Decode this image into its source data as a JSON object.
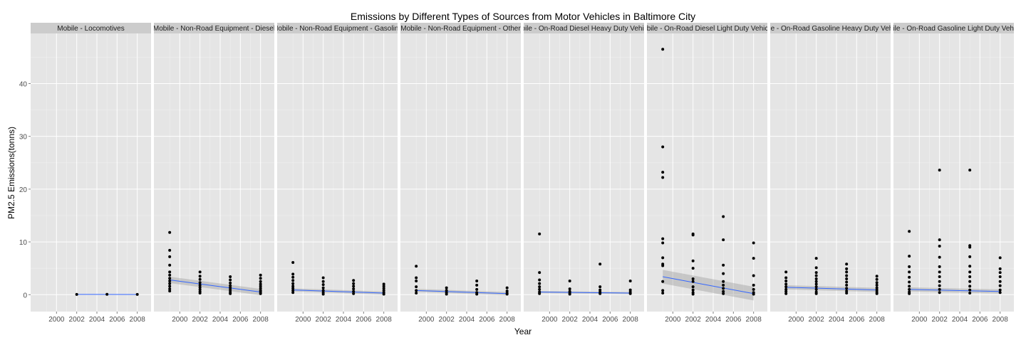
{
  "chart_data": {
    "type": "scatter",
    "title": "Emissions by Different Types of Sources from Motor Vehicles in Baltimore City",
    "xlabel": "Year",
    "ylabel": "PM2.5 Emissions(tonns)",
    "xlim": [
      1999,
      2008
    ],
    "ylim": [
      -3.2,
      49.5
    ],
    "x_ticks": [
      2000,
      2002,
      2004,
      2006,
      2008
    ],
    "y_ticks": [
      0,
      10,
      20,
      30,
      40
    ],
    "grid": true,
    "legend": "none",
    "panels": [
      {
        "name": "Mobile - Locomotives",
        "points": [
          [
            2002,
            0.06
          ],
          [
            2005,
            0.07
          ],
          [
            2008,
            0.05
          ]
        ],
        "trend": {
          "start": [
            2002,
            0.05
          ],
          "end": [
            2008,
            0.04
          ],
          "band": 0.05
        }
      },
      {
        "name": "Mobile - Non-Road Equipment - Diesel",
        "points": [
          [
            1999,
            11.8
          ],
          [
            1999,
            8.4
          ],
          [
            1999,
            7.2
          ],
          [
            1999,
            5.6
          ],
          [
            1999,
            4.3
          ],
          [
            1999,
            3.7
          ],
          [
            1999,
            3.1
          ],
          [
            1999,
            2.6
          ],
          [
            1999,
            2.1
          ],
          [
            1999,
            1.6
          ],
          [
            1999,
            1.1
          ],
          [
            1999,
            0.7
          ],
          [
            2002,
            4.3
          ],
          [
            2002,
            3.5
          ],
          [
            2002,
            2.9
          ],
          [
            2002,
            2.3
          ],
          [
            2002,
            1.8
          ],
          [
            2002,
            1.4
          ],
          [
            2002,
            1.0
          ],
          [
            2002,
            0.6
          ],
          [
            2002,
            0.3
          ],
          [
            2005,
            3.4
          ],
          [
            2005,
            2.8
          ],
          [
            2005,
            2.2
          ],
          [
            2005,
            1.7
          ],
          [
            2005,
            1.3
          ],
          [
            2005,
            0.9
          ],
          [
            2005,
            0.5
          ],
          [
            2005,
            0.2
          ],
          [
            2008,
            3.7
          ],
          [
            2008,
            3.1
          ],
          [
            2008,
            2.5
          ],
          [
            2008,
            2.0
          ],
          [
            2008,
            1.6
          ],
          [
            2008,
            1.2
          ],
          [
            2008,
            0.8
          ],
          [
            2008,
            0.5
          ],
          [
            2008,
            0.2
          ]
        ],
        "trend": {
          "start": [
            1999,
            2.8
          ],
          "end": [
            2008,
            0.5
          ],
          "band": 0.6
        }
      },
      {
        "name": "Mobile - Non-Road Equipment - Gasoline",
        "points": [
          [
            1999,
            6.1
          ],
          [
            1999,
            3.9
          ],
          [
            1999,
            3.3
          ],
          [
            1999,
            2.7
          ],
          [
            1999,
            2.1
          ],
          [
            1999,
            1.6
          ],
          [
            1999,
            1.2
          ],
          [
            1999,
            0.8
          ],
          [
            1999,
            0.4
          ],
          [
            2002,
            3.2
          ],
          [
            2002,
            2.5
          ],
          [
            2002,
            1.9
          ],
          [
            2002,
            1.3
          ],
          [
            2002,
            0.8
          ],
          [
            2002,
            0.4
          ],
          [
            2002,
            0.1
          ],
          [
            2005,
            2.7
          ],
          [
            2005,
            2.1
          ],
          [
            2005,
            1.6
          ],
          [
            2005,
            1.1
          ],
          [
            2005,
            0.6
          ],
          [
            2005,
            0.2
          ],
          [
            2008,
            2.0
          ],
          [
            2008,
            1.6
          ],
          [
            2008,
            1.2
          ],
          [
            2008,
            0.8
          ],
          [
            2008,
            0.4
          ],
          [
            2008,
            0.1
          ]
        ],
        "trend": {
          "start": [
            1999,
            0.9
          ],
          "end": [
            2008,
            0.3
          ],
          "band": 0.3
        }
      },
      {
        "name": "Mobile - Non-Road Equipment - Other",
        "points": [
          [
            1999,
            5.4
          ],
          [
            1999,
            3.2
          ],
          [
            1999,
            2.6
          ],
          [
            1999,
            1.5
          ],
          [
            1999,
            0.8
          ],
          [
            1999,
            0.3
          ],
          [
            2002,
            1.3
          ],
          [
            2002,
            0.8
          ],
          [
            2002,
            0.4
          ],
          [
            2002,
            0.1
          ],
          [
            2005,
            2.6
          ],
          [
            2005,
            1.8
          ],
          [
            2005,
            1.0
          ],
          [
            2005,
            0.4
          ],
          [
            2005,
            0.1
          ],
          [
            2008,
            1.3
          ],
          [
            2008,
            0.7
          ],
          [
            2008,
            0.3
          ],
          [
            2008,
            0.1
          ]
        ],
        "trend": {
          "start": [
            1999,
            0.8
          ],
          "end": [
            2008,
            0.2
          ],
          "band": 0.3
        }
      },
      {
        "name": "Mobile - On-Road Diesel Heavy Duty Vehicles",
        "points": [
          [
            1999,
            11.5
          ],
          [
            1999,
            4.2
          ],
          [
            1999,
            2.8
          ],
          [
            1999,
            2.1
          ],
          [
            1999,
            1.5
          ],
          [
            1999,
            1.0
          ],
          [
            1999,
            0.5
          ],
          [
            1999,
            0.2
          ],
          [
            2002,
            2.6
          ],
          [
            2002,
            1.1
          ],
          [
            2002,
            0.6
          ],
          [
            2002,
            0.3
          ],
          [
            2002,
            0.1
          ],
          [
            2005,
            5.8
          ],
          [
            2005,
            1.5
          ],
          [
            2005,
            0.9
          ],
          [
            2005,
            0.5
          ],
          [
            2005,
            0.2
          ],
          [
            2008,
            2.6
          ],
          [
            2008,
            0.9
          ],
          [
            2008,
            0.5
          ],
          [
            2008,
            0.2
          ]
        ],
        "trend": {
          "start": [
            1999,
            0.5
          ],
          "end": [
            2008,
            0.3
          ],
          "band": 0.2
        }
      },
      {
        "name": "Mobile - On-Road Diesel Light Duty Vehicles",
        "points": [
          [
            1999,
            46.5
          ],
          [
            1999,
            28.0
          ],
          [
            1999,
            23.2
          ],
          [
            1999,
            22.2
          ],
          [
            1999,
            10.6
          ],
          [
            1999,
            9.8
          ],
          [
            1999,
            7.0
          ],
          [
            1999,
            5.8
          ],
          [
            1999,
            5.5
          ],
          [
            1999,
            2.5
          ],
          [
            1999,
            0.8
          ],
          [
            1999,
            0.3
          ],
          [
            2002,
            11.5
          ],
          [
            2002,
            11.3
          ],
          [
            2002,
            6.4
          ],
          [
            2002,
            5.0
          ],
          [
            2002,
            3.0
          ],
          [
            2002,
            2.5
          ],
          [
            2002,
            1.5
          ],
          [
            2002,
            0.9
          ],
          [
            2002,
            0.4
          ],
          [
            2002,
            0.1
          ],
          [
            2005,
            14.8
          ],
          [
            2005,
            10.4
          ],
          [
            2005,
            5.6
          ],
          [
            2005,
            4.0
          ],
          [
            2005,
            2.5
          ],
          [
            2005,
            1.8
          ],
          [
            2005,
            1.2
          ],
          [
            2005,
            0.6
          ],
          [
            2005,
            0.2
          ],
          [
            2008,
            9.8
          ],
          [
            2008,
            6.9
          ],
          [
            2008,
            3.6
          ],
          [
            2008,
            1.8
          ],
          [
            2008,
            1.0
          ],
          [
            2008,
            0.4
          ],
          [
            2008,
            0.1
          ]
        ],
        "trend": {
          "start": [
            1999,
            3.4
          ],
          "end": [
            2008,
            0.2
          ],
          "band": 1.3
        }
      },
      {
        "name": "Mobile - On-Road Gasoline Heavy Duty Vehicles",
        "points": [
          [
            1999,
            4.3
          ],
          [
            1999,
            3.2
          ],
          [
            1999,
            2.6
          ],
          [
            1999,
            2.0
          ],
          [
            1999,
            1.5
          ],
          [
            1999,
            1.0
          ],
          [
            1999,
            0.6
          ],
          [
            1999,
            0.2
          ],
          [
            2002,
            6.9
          ],
          [
            2002,
            5.1
          ],
          [
            2002,
            4.2
          ],
          [
            2002,
            3.6
          ],
          [
            2002,
            3.0
          ],
          [
            2002,
            2.5
          ],
          [
            2002,
            2.0
          ],
          [
            2002,
            1.5
          ],
          [
            2002,
            1.0
          ],
          [
            2002,
            0.5
          ],
          [
            2002,
            0.2
          ],
          [
            2005,
            5.8
          ],
          [
            2005,
            4.9
          ],
          [
            2005,
            4.3
          ],
          [
            2005,
            3.6
          ],
          [
            2005,
            3.0
          ],
          [
            2005,
            2.4
          ],
          [
            2005,
            1.8
          ],
          [
            2005,
            1.2
          ],
          [
            2005,
            0.7
          ],
          [
            2005,
            0.3
          ],
          [
            2008,
            3.5
          ],
          [
            2008,
            2.9
          ],
          [
            2008,
            2.3
          ],
          [
            2008,
            1.8
          ],
          [
            2008,
            1.3
          ],
          [
            2008,
            0.9
          ],
          [
            2008,
            0.5
          ],
          [
            2008,
            0.2
          ]
        ],
        "trend": {
          "start": [
            1999,
            1.4
          ],
          "end": [
            2008,
            0.9
          ],
          "band": 0.4
        }
      },
      {
        "name": "Mobile - On-Road Gasoline Light Duty Vehicles",
        "points": [
          [
            1999,
            12.0
          ],
          [
            1999,
            7.3
          ],
          [
            1999,
            5.3
          ],
          [
            1999,
            4.3
          ],
          [
            1999,
            3.3
          ],
          [
            1999,
            2.4
          ],
          [
            1999,
            1.6
          ],
          [
            1999,
            1.0
          ],
          [
            1999,
            0.5
          ],
          [
            1999,
            0.2
          ],
          [
            2002,
            23.6
          ],
          [
            2002,
            10.4
          ],
          [
            2002,
            9.2
          ],
          [
            2002,
            7.1
          ],
          [
            2002,
            5.3
          ],
          [
            2002,
            4.3
          ],
          [
            2002,
            3.4
          ],
          [
            2002,
            2.5
          ],
          [
            2002,
            1.7
          ],
          [
            2002,
            1.0
          ],
          [
            2002,
            0.4
          ],
          [
            2005,
            23.6
          ],
          [
            2005,
            9.3
          ],
          [
            2005,
            9.0
          ],
          [
            2005,
            7.2
          ],
          [
            2005,
            5.4
          ],
          [
            2005,
            4.3
          ],
          [
            2005,
            3.4
          ],
          [
            2005,
            2.5
          ],
          [
            2005,
            1.6
          ],
          [
            2005,
            0.9
          ],
          [
            2005,
            0.3
          ],
          [
            2008,
            7.0
          ],
          [
            2008,
            4.9
          ],
          [
            2008,
            4.2
          ],
          [
            2008,
            3.4
          ],
          [
            2008,
            2.5
          ],
          [
            2008,
            1.7
          ],
          [
            2008,
            0.9
          ],
          [
            2008,
            0.4
          ]
        ],
        "trend": {
          "start": [
            1999,
            1.0
          ],
          "end": [
            2008,
            0.6
          ],
          "band": 0.4
        }
      }
    ]
  }
}
